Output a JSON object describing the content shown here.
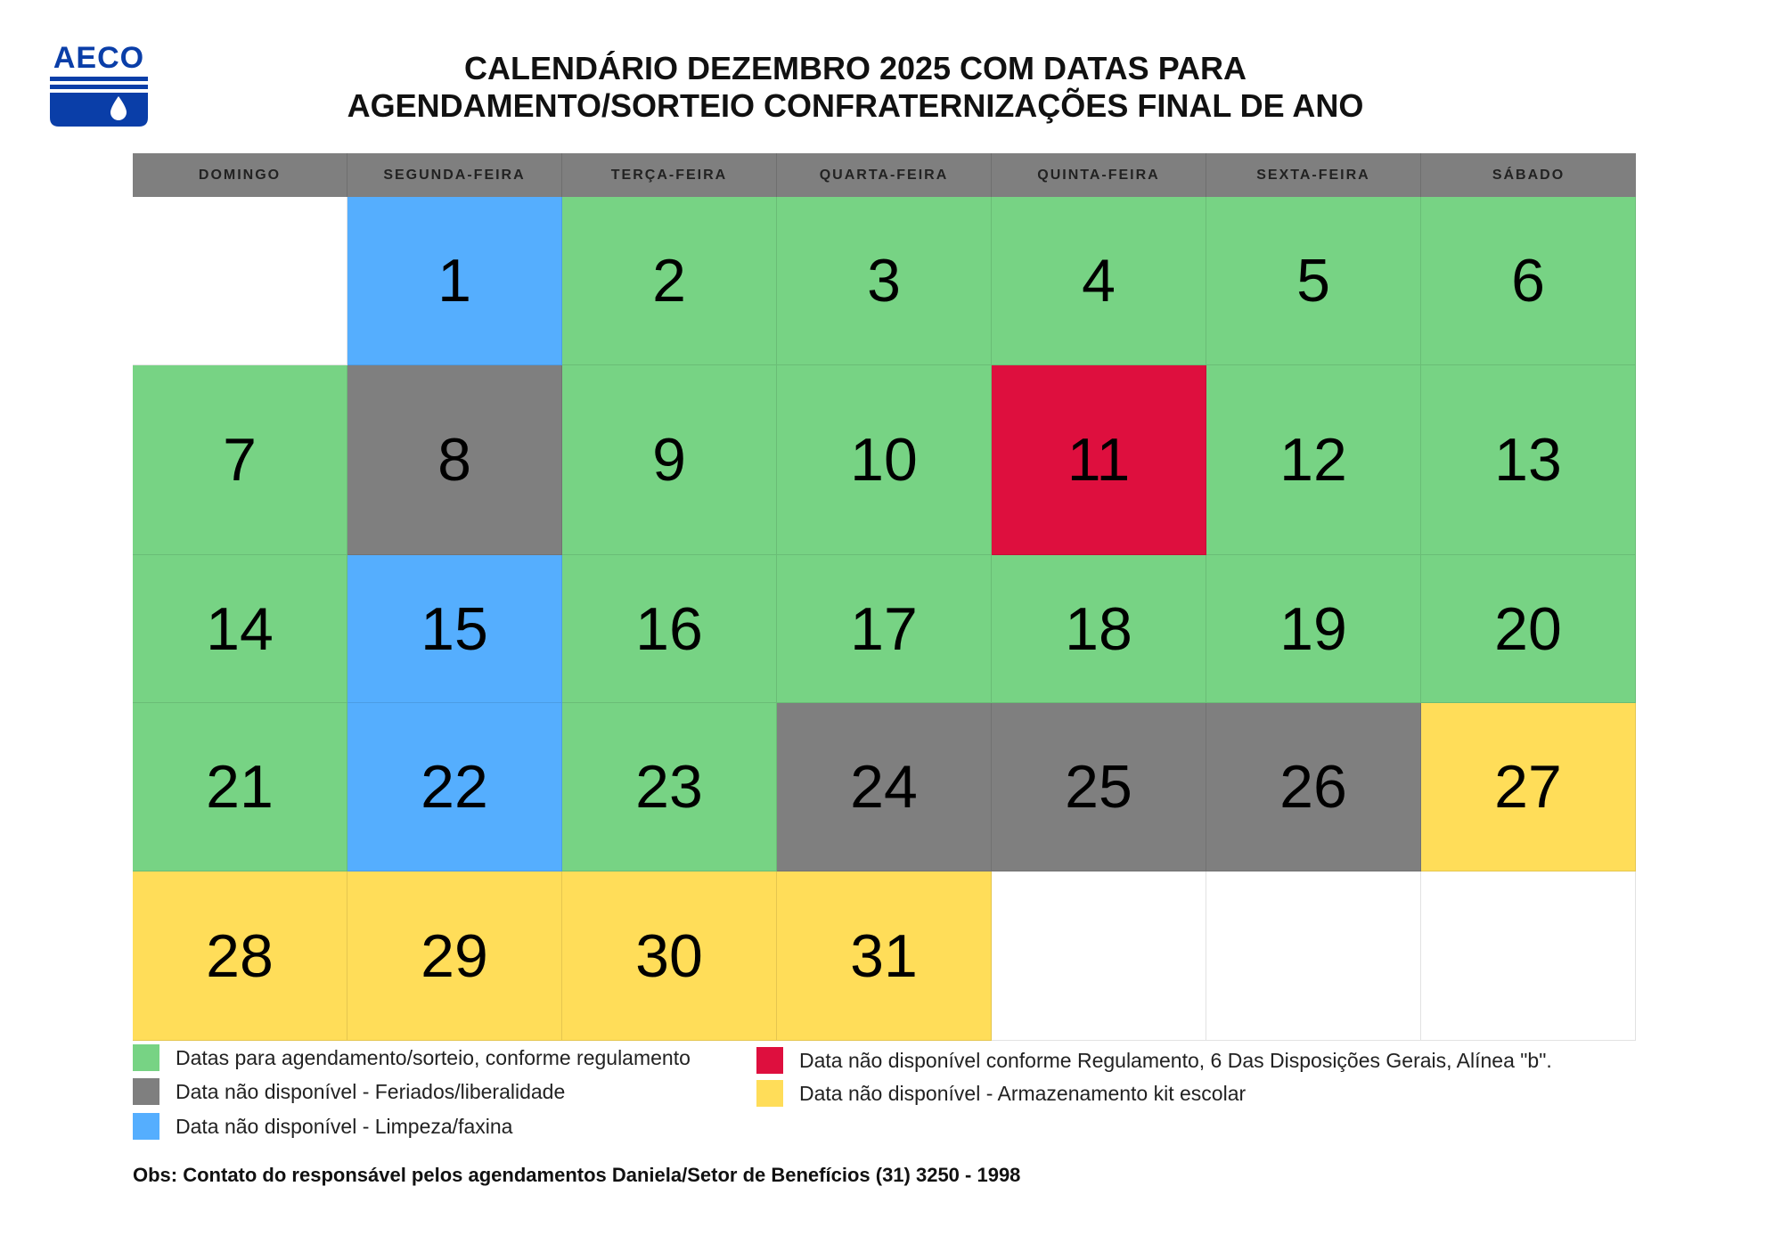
{
  "logo": {
    "text": "AECO"
  },
  "title": {
    "line1": "CALENDÁRIO DEZEMBRO 2025 COM DATAS PARA",
    "line2": "AGENDAMENTO/SORTEIO CONFRATERNIZAÇÕES FINAL DE ANO"
  },
  "colors": {
    "green": "#77d384",
    "gray": "#7f7f7f",
    "blue": "#55aefe",
    "red": "#de0f3e",
    "yellow": "#ffdd59",
    "header": "#7f7f7f",
    "logo_blue": "#0a3ea8"
  },
  "weekdays": [
    "DOMINGO",
    "SEGUNDA-FEIRA",
    "TERÇA-FEIRA",
    "QUARTA-FEIRA",
    "QUINTA-FEIRA",
    "SEXTA-FEIRA",
    "SÁBADO"
  ],
  "weeks": [
    [
      {
        "day": "",
        "status": "white"
      },
      {
        "day": "1",
        "status": "blue"
      },
      {
        "day": "2",
        "status": "green"
      },
      {
        "day": "3",
        "status": "green"
      },
      {
        "day": "4",
        "status": "green"
      },
      {
        "day": "5",
        "status": "green"
      },
      {
        "day": "6",
        "status": "green"
      }
    ],
    [
      {
        "day": "7",
        "status": "green"
      },
      {
        "day": "8",
        "status": "gray"
      },
      {
        "day": "9",
        "status": "green"
      },
      {
        "day": "10",
        "status": "green"
      },
      {
        "day": "11",
        "status": "red"
      },
      {
        "day": "12",
        "status": "green"
      },
      {
        "day": "13",
        "status": "green"
      }
    ],
    [
      {
        "day": "14",
        "status": "green"
      },
      {
        "day": "15",
        "status": "blue"
      },
      {
        "day": "16",
        "status": "green"
      },
      {
        "day": "17",
        "status": "green"
      },
      {
        "day": "18",
        "status": "green"
      },
      {
        "day": "19",
        "status": "green"
      },
      {
        "day": "20",
        "status": "green"
      }
    ],
    [
      {
        "day": "21",
        "status": "green"
      },
      {
        "day": "22",
        "status": "blue"
      },
      {
        "day": "23",
        "status": "green"
      },
      {
        "day": "24",
        "status": "gray"
      },
      {
        "day": "25",
        "status": "gray"
      },
      {
        "day": "26",
        "status": "gray"
      },
      {
        "day": "27",
        "status": "yellow"
      }
    ],
    [
      {
        "day": "28",
        "status": "yellow"
      },
      {
        "day": "29",
        "status": "yellow"
      },
      {
        "day": "30",
        "status": "yellow"
      },
      {
        "day": "31",
        "status": "yellow"
      },
      {
        "day": "",
        "status": "white"
      },
      {
        "day": "",
        "status": "white"
      },
      {
        "day": "",
        "status": "white"
      }
    ]
  ],
  "legend": [
    {
      "status": "green",
      "label": "Datas para agendamento/sorteio, conforme regulamento"
    },
    {
      "status": "gray",
      "label": "Data não disponível - Feriados/liberalidade"
    },
    {
      "status": "blue",
      "label": "Data não disponível - Limpeza/faxina"
    },
    {
      "status": "red",
      "label": "Data não disponível conforme Regulamento, 6 Das Disposições Gerais, Alínea \"b\"."
    },
    {
      "status": "yellow",
      "label": "Data não disponível - Armazenamento kit escolar"
    }
  ],
  "obs": "Obs: Contato do responsável pelos agendamentos Daniela/Setor de Benefícios (31) 3250 - 1998"
}
